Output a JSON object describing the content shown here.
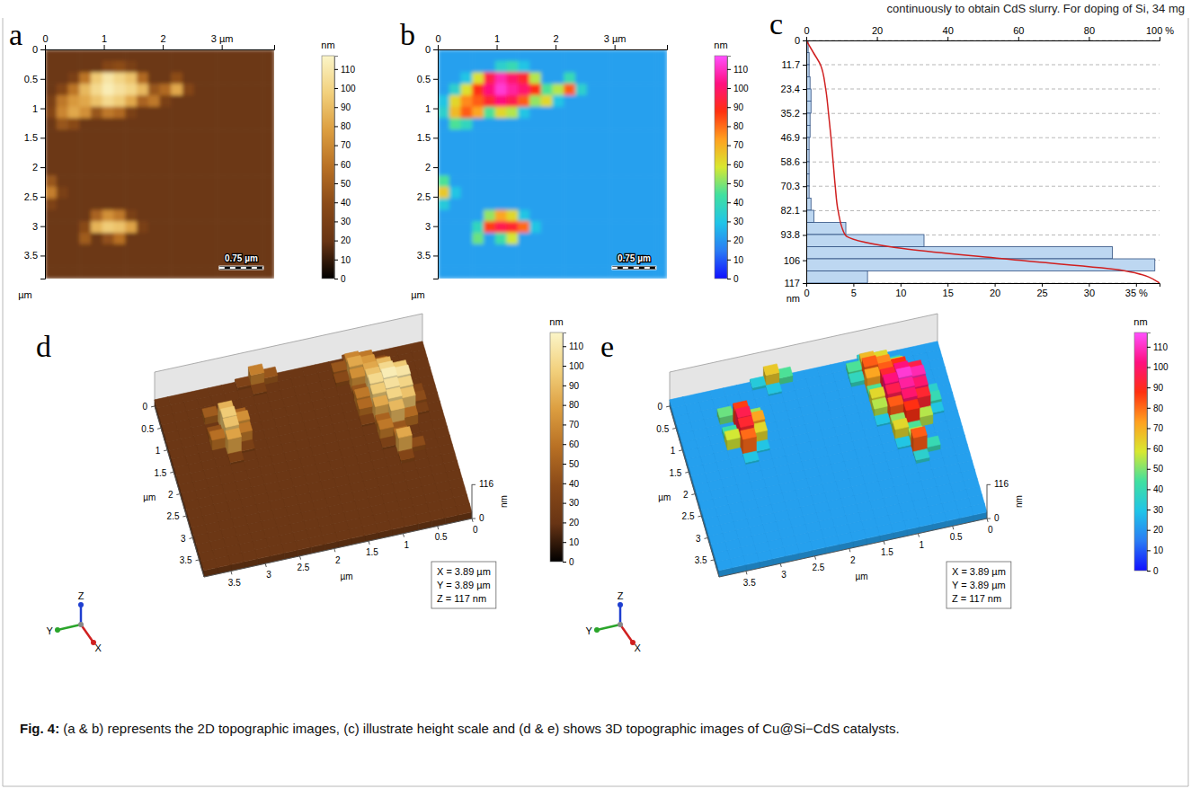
{
  "page_text": "continuously to obtain CdS slurry. For doping of Si, 34 mg",
  "caption": {
    "label": "Fig. 4:",
    "text": "(a & b) represents the 2D topographic images, (c) illustrate height scale and (d & e) shows 3D topographic images of Cu@Si−CdS catalysts."
  },
  "chart_data": [
    {
      "panel": "a",
      "type": "heatmap",
      "xlim": [
        0,
        3.89
      ],
      "ylim": [
        0,
        3.89
      ],
      "xticks": [
        0,
        1,
        2,
        {
          "value": 3,
          "label": "3 µm"
        }
      ],
      "yticks": [
        0,
        0.5,
        1,
        1.5,
        2,
        2.5,
        3,
        3.5
      ],
      "y_label": "µm",
      "scale_bar": {
        "value": 0.75,
        "label": "0.75 µm"
      },
      "colorbar": {
        "range": [
          0,
          117
        ],
        "ticks": [
          0,
          10,
          20,
          30,
          40,
          50,
          60,
          70,
          80,
          90,
          100,
          110
        ],
        "label": "nm",
        "colors": [
          "#000000",
          "#683414",
          "#8a4a18",
          "#b87024",
          "#dc9e40",
          "#f2d07c",
          "#fbf5c8"
        ]
      },
      "cells": [
        [
          22,
          22,
          22,
          22,
          22,
          22,
          22,
          22,
          22,
          22,
          22,
          22,
          22,
          22,
          22,
          22,
          22,
          22,
          22,
          22
        ],
        [
          22,
          22,
          22,
          22,
          22,
          35,
          40,
          30,
          22,
          22,
          22,
          22,
          22,
          22,
          22,
          22,
          22,
          22,
          22,
          22
        ],
        [
          22,
          22,
          30,
          60,
          95,
          108,
          100,
          92,
          55,
          22,
          22,
          40,
          22,
          22,
          22,
          22,
          22,
          22,
          22,
          22
        ],
        [
          22,
          35,
          60,
          88,
          102,
          112,
          106,
          100,
          88,
          45,
          55,
          82,
          35,
          22,
          22,
          22,
          22,
          22,
          22,
          22
        ],
        [
          30,
          62,
          76,
          82,
          92,
          102,
          96,
          82,
          52,
          62,
          30,
          22,
          22,
          22,
          22,
          22,
          22,
          22,
          22,
          22
        ],
        [
          35,
          68,
          82,
          72,
          45,
          62,
          55,
          30,
          22,
          22,
          22,
          22,
          22,
          22,
          22,
          22,
          22,
          22,
          22,
          22
        ],
        [
          22,
          45,
          38,
          22,
          22,
          22,
          22,
          22,
          22,
          22,
          22,
          22,
          22,
          22,
          22,
          22,
          22,
          22,
          22,
          22
        ],
        [
          22,
          22,
          22,
          22,
          22,
          22,
          22,
          22,
          22,
          22,
          22,
          22,
          22,
          22,
          22,
          22,
          22,
          22,
          22,
          22
        ],
        [
          22,
          22,
          22,
          22,
          22,
          22,
          22,
          22,
          22,
          22,
          22,
          22,
          22,
          22,
          22,
          22,
          22,
          22,
          22,
          22
        ],
        [
          22,
          22,
          22,
          22,
          22,
          22,
          22,
          22,
          22,
          22,
          22,
          22,
          22,
          22,
          22,
          22,
          22,
          22,
          22,
          22
        ],
        [
          22,
          22,
          22,
          22,
          22,
          22,
          22,
          22,
          22,
          22,
          22,
          22,
          22,
          22,
          22,
          22,
          22,
          22,
          22,
          22
        ],
        [
          45,
          22,
          22,
          22,
          22,
          22,
          22,
          22,
          22,
          22,
          22,
          22,
          22,
          22,
          22,
          22,
          22,
          22,
          22,
          22
        ],
        [
          65,
          30,
          22,
          22,
          22,
          22,
          22,
          22,
          22,
          22,
          22,
          22,
          22,
          22,
          22,
          22,
          22,
          22,
          22,
          22
        ],
        [
          32,
          22,
          22,
          22,
          22,
          22,
          22,
          22,
          22,
          22,
          22,
          22,
          22,
          22,
          22,
          22,
          22,
          22,
          22,
          22
        ],
        [
          22,
          22,
          22,
          22,
          52,
          72,
          62,
          30,
          22,
          22,
          22,
          22,
          22,
          22,
          22,
          22,
          22,
          22,
          22,
          22
        ],
        [
          22,
          22,
          22,
          38,
          86,
          96,
          92,
          80,
          30,
          22,
          22,
          22,
          22,
          22,
          22,
          22,
          22,
          22,
          22,
          22
        ],
        [
          22,
          22,
          22,
          48,
          22,
          42,
          58,
          22,
          22,
          22,
          22,
          22,
          22,
          22,
          22,
          22,
          22,
          22,
          22,
          22
        ],
        [
          22,
          22,
          22,
          22,
          22,
          22,
          22,
          22,
          22,
          22,
          22,
          22,
          22,
          22,
          22,
          22,
          22,
          22,
          22,
          22
        ],
        [
          22,
          22,
          22,
          22,
          22,
          22,
          22,
          22,
          22,
          22,
          22,
          22,
          22,
          22,
          22,
          22,
          22,
          22,
          22,
          22
        ],
        [
          22,
          22,
          22,
          22,
          22,
          22,
          22,
          22,
          22,
          22,
          22,
          22,
          22,
          22,
          22,
          22,
          22,
          22,
          22,
          22
        ]
      ]
    },
    {
      "panel": "b",
      "type": "heatmap",
      "xlim": [
        0,
        3.89
      ],
      "ylim": [
        0,
        3.89
      ],
      "xticks": [
        0,
        1,
        2,
        {
          "value": 3,
          "label": "3 µm"
        }
      ],
      "yticks": [
        0,
        0.5,
        1,
        1.5,
        2,
        2.5,
        3,
        3.5
      ],
      "y_label": "µm",
      "scale_bar": {
        "value": 0.75,
        "label": "0.75 µm"
      },
      "colorbar": {
        "range": [
          0,
          117
        ],
        "ticks": [
          0,
          10,
          20,
          30,
          40,
          50,
          60,
          70,
          80,
          90,
          100,
          110
        ],
        "label": "nm",
        "colors": [
          "#1010ff",
          "#2a7cf4",
          "#20c4e8",
          "#40e0a0",
          "#d8e830",
          "#ffa020",
          "#ff3010",
          "#ff1080",
          "#ff50ff"
        ]
      }
    },
    {
      "panel": "c",
      "type": "histogram",
      "orientation": "horizontal",
      "grid": true,
      "color": "#bdd7f1",
      "bins": [
        0,
        5.85,
        11.7,
        17.55,
        23.4,
        29.25,
        35.1,
        40.95,
        46.8,
        52.65,
        58.5,
        64.35,
        70.2,
        76.05,
        81.9,
        87.75,
        93.6,
        99.45,
        105.3,
        111.15,
        117
      ],
      "values": [
        0.2,
        0.3,
        0.3,
        0.4,
        0.5,
        0.5,
        0.4,
        0.4,
        0.3,
        0.3,
        0.3,
        0.3,
        0.3,
        0.5,
        0.8,
        4.2,
        12.5,
        32.5,
        37,
        6.5
      ],
      "xlim": [
        0,
        37.5
      ],
      "xticks": [
        0,
        5,
        10,
        15,
        20,
        25,
        30,
        {
          "value": 35,
          "label": "35 %"
        }
      ],
      "x2lim": [
        0,
        100
      ],
      "x2ticks": [
        0,
        20,
        40,
        60,
        80,
        {
          "value": 100,
          "label": "100 %"
        }
      ],
      "ylim": [
        0,
        117
      ],
      "yticks": [
        0,
        11.7,
        23.4,
        35.2,
        46.9,
        58.6,
        70.3,
        82.1,
        93.8,
        106,
        117
      ],
      "y_label": "nm",
      "line": {
        "type": "line",
        "axis": "x2",
        "color": "#d02020",
        "values": [
          0,
          2,
          4,
          5.5,
          6.3,
          7,
          7.6,
          8.2,
          9,
          11,
          24,
          60,
          90,
          100
        ],
        "heights": [
          0,
          5.85,
          11.7,
          23.4,
          35.2,
          46.9,
          58.6,
          70.3,
          82.1,
          93.8,
          99.6,
          106,
          111,
          117
        ]
      }
    },
    {
      "panel": "d",
      "type": "surface3d",
      "xlim": [
        0,
        3.89
      ],
      "ylim": [
        0,
        3.89
      ],
      "zlim": [
        0,
        117
      ],
      "xticks": [
        0,
        0.5,
        1,
        1.5,
        2,
        2.5,
        3,
        3.5
      ],
      "yticks": [
        0,
        0.5,
        1,
        1.5,
        2,
        2.5,
        3,
        3.5
      ],
      "zticks": [
        0,
        116
      ],
      "x_label": "µm",
      "y_label": "µm",
      "z_label": "nm",
      "info": [
        "X = 3.89 µm",
        "Y = 3.89 µm",
        "Z = 117 nm"
      ],
      "axis_names": [
        "X",
        "Y",
        "Z"
      ],
      "colorbar": {
        "range": [
          0,
          117
        ],
        "ticks": [
          0,
          10,
          20,
          30,
          40,
          50,
          60,
          70,
          80,
          90,
          100,
          110
        ],
        "label": "nm",
        "colors": [
          "#000000",
          "#683414",
          "#8a4a18",
          "#b87024",
          "#dc9e40",
          "#f2d07c",
          "#fbf5c8"
        ]
      }
    },
    {
      "panel": "e",
      "type": "surface3d",
      "xlim": [
        0,
        3.89
      ],
      "ylim": [
        0,
        3.89
      ],
      "zlim": [
        0,
        117
      ],
      "xticks": [
        0,
        0.5,
        1,
        1.5,
        2,
        2.5,
        3,
        3.5
      ],
      "yticks": [
        0,
        0.5,
        1,
        1.5,
        2,
        2.5,
        3,
        3.5
      ],
      "zticks": [
        0,
        116
      ],
      "x_label": "µm",
      "y_label": "µm",
      "z_label": "nm",
      "info": [
        "X = 3.89 µm",
        "Y = 3.89 µm",
        "Z = 117 nm"
      ],
      "axis_names": [
        "X",
        "Y",
        "Z"
      ],
      "colorbar": {
        "range": [
          0,
          117
        ],
        "ticks": [
          0,
          10,
          20,
          30,
          40,
          50,
          60,
          70,
          80,
          90,
          100,
          110
        ],
        "label": "nm",
        "colors": [
          "#1010ff",
          "#2a7cf4",
          "#20c4e8",
          "#40e0a0",
          "#d8e830",
          "#ffa020",
          "#ff3010",
          "#ff1080",
          "#ff50ff"
        ]
      }
    }
  ]
}
